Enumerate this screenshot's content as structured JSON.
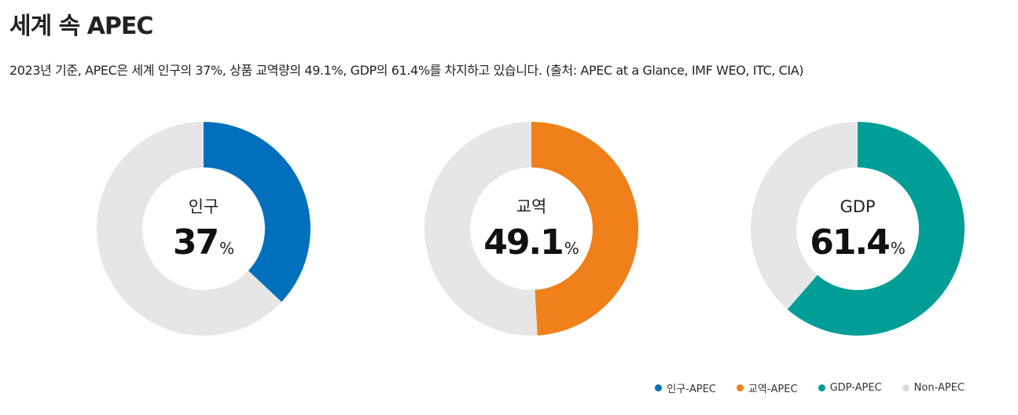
{
  "title": "세계 속 APEC",
  "description": "2023년 기준, APEC은 세계 인구의 37%, 상품 교역량의 49.1%, GDP의 61.4%를 차지하고 있습니다. (출처: APEC at a Glance, IMF WEO, ITC, CIA)",
  "colors": {
    "population": "#0070bd",
    "trade": "#f08019",
    "gdp": "#009e96",
    "non_apec": "#e6e6e6"
  },
  "chart_data": [
    {
      "type": "pie",
      "variant": "donut",
      "center_label": "인구",
      "value_text": "37",
      "unit": "%",
      "slices": [
        {
          "name": "인구-APEC",
          "value": 37,
          "color": "#0070bd"
        },
        {
          "name": "Non-APEC",
          "value": 63,
          "color": "#e6e6e6"
        }
      ]
    },
    {
      "type": "pie",
      "variant": "donut",
      "center_label": "교역",
      "value_text": "49.1",
      "unit": "%",
      "slices": [
        {
          "name": "교역-APEC",
          "value": 49.1,
          "color": "#f08019"
        },
        {
          "name": "Non-APEC",
          "value": 50.9,
          "color": "#e6e6e6"
        }
      ]
    },
    {
      "type": "pie",
      "variant": "donut",
      "center_label": "GDP",
      "value_text": "61.4",
      "unit": "%",
      "slices": [
        {
          "name": "GDP-APEC",
          "value": 61.4,
          "color": "#009e96"
        },
        {
          "name": "Non-APEC",
          "value": 38.6,
          "color": "#e6e6e6"
        }
      ]
    }
  ],
  "legend": {
    "placement": "bottom-right",
    "items": [
      {
        "label": "인구-APEC",
        "color": "#0070bd"
      },
      {
        "label": "교역-APEC",
        "color": "#f08019"
      },
      {
        "label": "GDP-APEC",
        "color": "#009e96"
      },
      {
        "label": "Non-APEC",
        "color": "#d9d9d9"
      }
    ]
  }
}
